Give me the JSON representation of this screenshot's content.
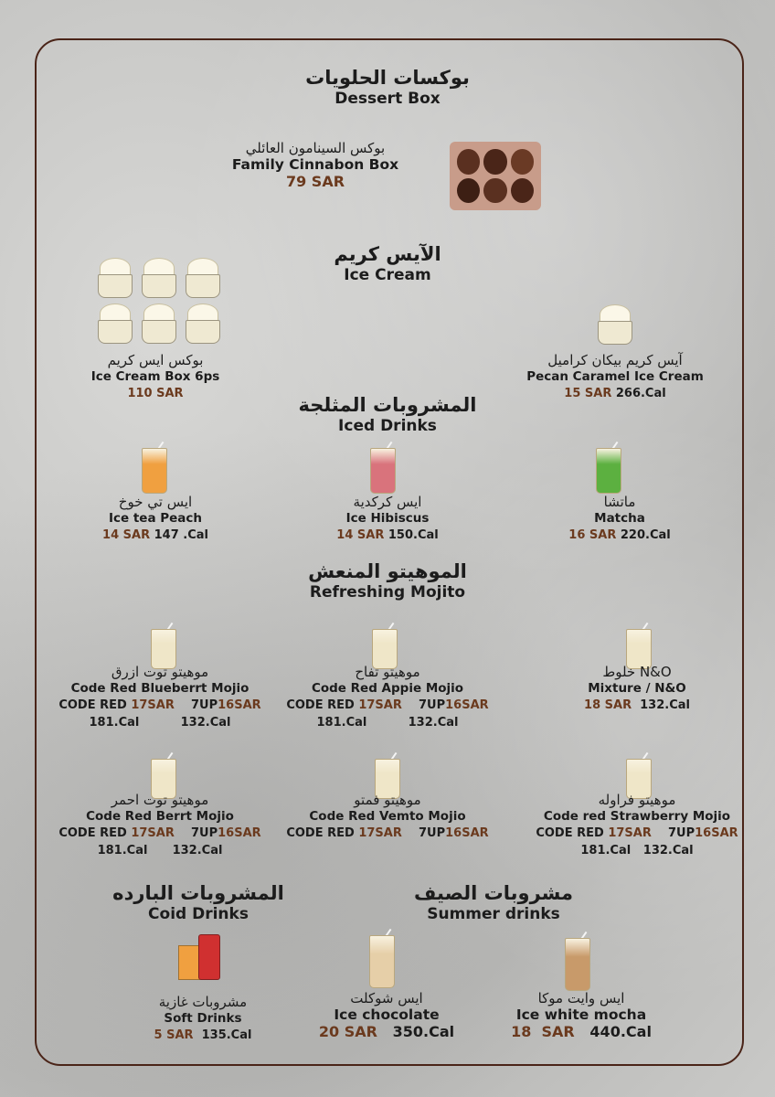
{
  "sections": {
    "dessert": {
      "ar": "بوكسات الحلويات",
      "en": "Dessert Box"
    },
    "icecream": {
      "ar": "الآيس كريم",
      "en": "Ice Cream"
    },
    "iced": {
      "ar": "المشروبات المثلجة",
      "en": "Iced Drinks"
    },
    "mojito": {
      "ar": "الموهيتو المنعش",
      "en": "Refreshing Mojito"
    },
    "cold": {
      "ar": "المشروبات البارده",
      "en": "Coid Drinks"
    },
    "summer": {
      "ar": "مشروبات الصيف",
      "en": "Summer drinks"
    }
  },
  "items": [
    {
      "id": "family-cinnabon-box",
      "ar": "بوكس السينامون العائلي",
      "en": "Family Cinnabon Box",
      "lines": [
        [
          {
            "p": "79 SAR"
          }
        ]
      ],
      "icon": "dessert-box-icon"
    },
    {
      "id": "ice-cream-box",
      "ar": "بوكس ايس كريم",
      "en": "Ice Cream Box 6ps",
      "lines": [
        [
          {
            "p": "110 SAR"
          }
        ]
      ],
      "icon": "ice-cream-cups-icon"
    },
    {
      "id": "pecan-caramel",
      "ar": "آيس كريم بيكان كراميل",
      "en": "Pecan Caramel Ice Cream",
      "lines": [
        [
          {
            "p": "15 SAR"
          },
          {
            "t": "266.Cal"
          }
        ]
      ],
      "icon": "ice-cream-cup-icon"
    },
    {
      "id": "ice-tea-peach",
      "ar": "ايس تي خوخ",
      "en": "Ice tea Peach",
      "lines": [
        [
          {
            "p": "14 SAR"
          },
          {
            "t": "147 .Cal"
          }
        ]
      ],
      "icon": "peach-tea-glass-icon",
      "color": "#f0a040"
    },
    {
      "id": "ice-hibiscus",
      "ar": "ايس كركدية",
      "en": "Ice Hibiscus",
      "lines": [
        [
          {
            "p": "14 SAR"
          },
          {
            "t": "150.Cal"
          }
        ]
      ],
      "icon": "hibiscus-glass-icon",
      "color": "#d9737c"
    },
    {
      "id": "matcha",
      "ar": "ماتشا",
      "en": "Matcha",
      "lines": [
        [
          {
            "p": "16 SAR"
          },
          {
            "t": "220.Cal"
          }
        ]
      ],
      "icon": "matcha-glass-icon",
      "color": "#5cb040"
    },
    {
      "id": "blueberry-mojito",
      "ar": "موهيتو توت ازرق",
      "en": "Code Red Blueberrt Mojio",
      "lines": [
        [
          {
            "t": "CODE RED "
          },
          {
            "p": "17SAR"
          },
          {
            "t": "   7UP"
          },
          {
            "p": "16SAR"
          }
        ],
        [
          {
            "t": "181.Cal"
          },
          {
            "t": "          132.Cal"
          }
        ]
      ],
      "icon": "mojito-glass-icon"
    },
    {
      "id": "apple-mojito",
      "ar": "موهيتو تفاح",
      "en": "Code Red Appie Mojio",
      "lines": [
        [
          {
            "t": "CODE RED "
          },
          {
            "p": "17SAR"
          },
          {
            "t": "   7UP"
          },
          {
            "p": "16SAR"
          }
        ],
        [
          {
            "t": "181.Cal"
          },
          {
            "t": "          132.Cal"
          }
        ]
      ],
      "icon": "mojito-glass-icon"
    },
    {
      "id": "mixture-no",
      "ar": "خلوط N&O",
      "en": "Mixture / N&O",
      "lines": [
        [
          {
            "p": "18 SAR"
          },
          {
            "t": " 132.Cal"
          }
        ]
      ],
      "icon": "mojito-glass-icon"
    },
    {
      "id": "berry-mojito",
      "ar": "موهيتو توت احمر",
      "en": "Code Red Berrt Mojio",
      "lines": [
        [
          {
            "t": "CODE RED "
          },
          {
            "p": "17SAR"
          },
          {
            "t": "   7UP"
          },
          {
            "p": "16SAR"
          }
        ],
        [
          {
            "t": "181.Cal"
          },
          {
            "t": "      132.Cal"
          }
        ]
      ],
      "icon": "mojito-glass-icon"
    },
    {
      "id": "vimto-mojito",
      "ar": "موهيتو فمتو",
      "en": "Code Red Vemto Mojio",
      "lines": [
        [
          {
            "t": "CODE RED "
          },
          {
            "p": "17SAR"
          },
          {
            "t": "   7UP"
          },
          {
            "p": "16SAR"
          }
        ]
      ],
      "icon": "mojito-glass-icon"
    },
    {
      "id": "strawberry-mojito",
      "ar": "موهيتو فراوله",
      "en": "Code red Strawberry Mojio",
      "lines": [
        [
          {
            "t": "CODE RED "
          },
          {
            "p": "17SAR"
          },
          {
            "t": "   7UP"
          },
          {
            "p": "16SAR"
          }
        ],
        [
          {
            "t": "181.Cal"
          },
          {
            "t": "   132.Cal"
          }
        ]
      ],
      "icon": "mojito-glass-icon"
    },
    {
      "id": "soft-drinks",
      "ar": "مشروبات غازية",
      "en": "Soft Drinks",
      "lines": [
        [
          {
            "p": "5 SAR"
          },
          {
            "t": " 135.Cal"
          }
        ]
      ],
      "icon": "soda-can-icon",
      "color": "#d03030"
    },
    {
      "id": "ice-chocolate",
      "ar": "ايس شوكلت",
      "en": "Ice chocolate",
      "lines": [
        [
          {
            "p": "20 SAR"
          },
          {
            "t": "  350.Cal"
          }
        ]
      ],
      "icon": "ice-chocolate-glass-icon",
      "color": "#e6cfa8"
    },
    {
      "id": "ice-white-mocha",
      "ar": "ايس وايت موكا",
      "en": "Ice white mocha",
      "lines": [
        [
          {
            "p": "18  SAR"
          },
          {
            "t": "  440.Cal"
          }
        ]
      ],
      "icon": "white-mocha-glass-icon",
      "color": "#c89a6a"
    }
  ]
}
